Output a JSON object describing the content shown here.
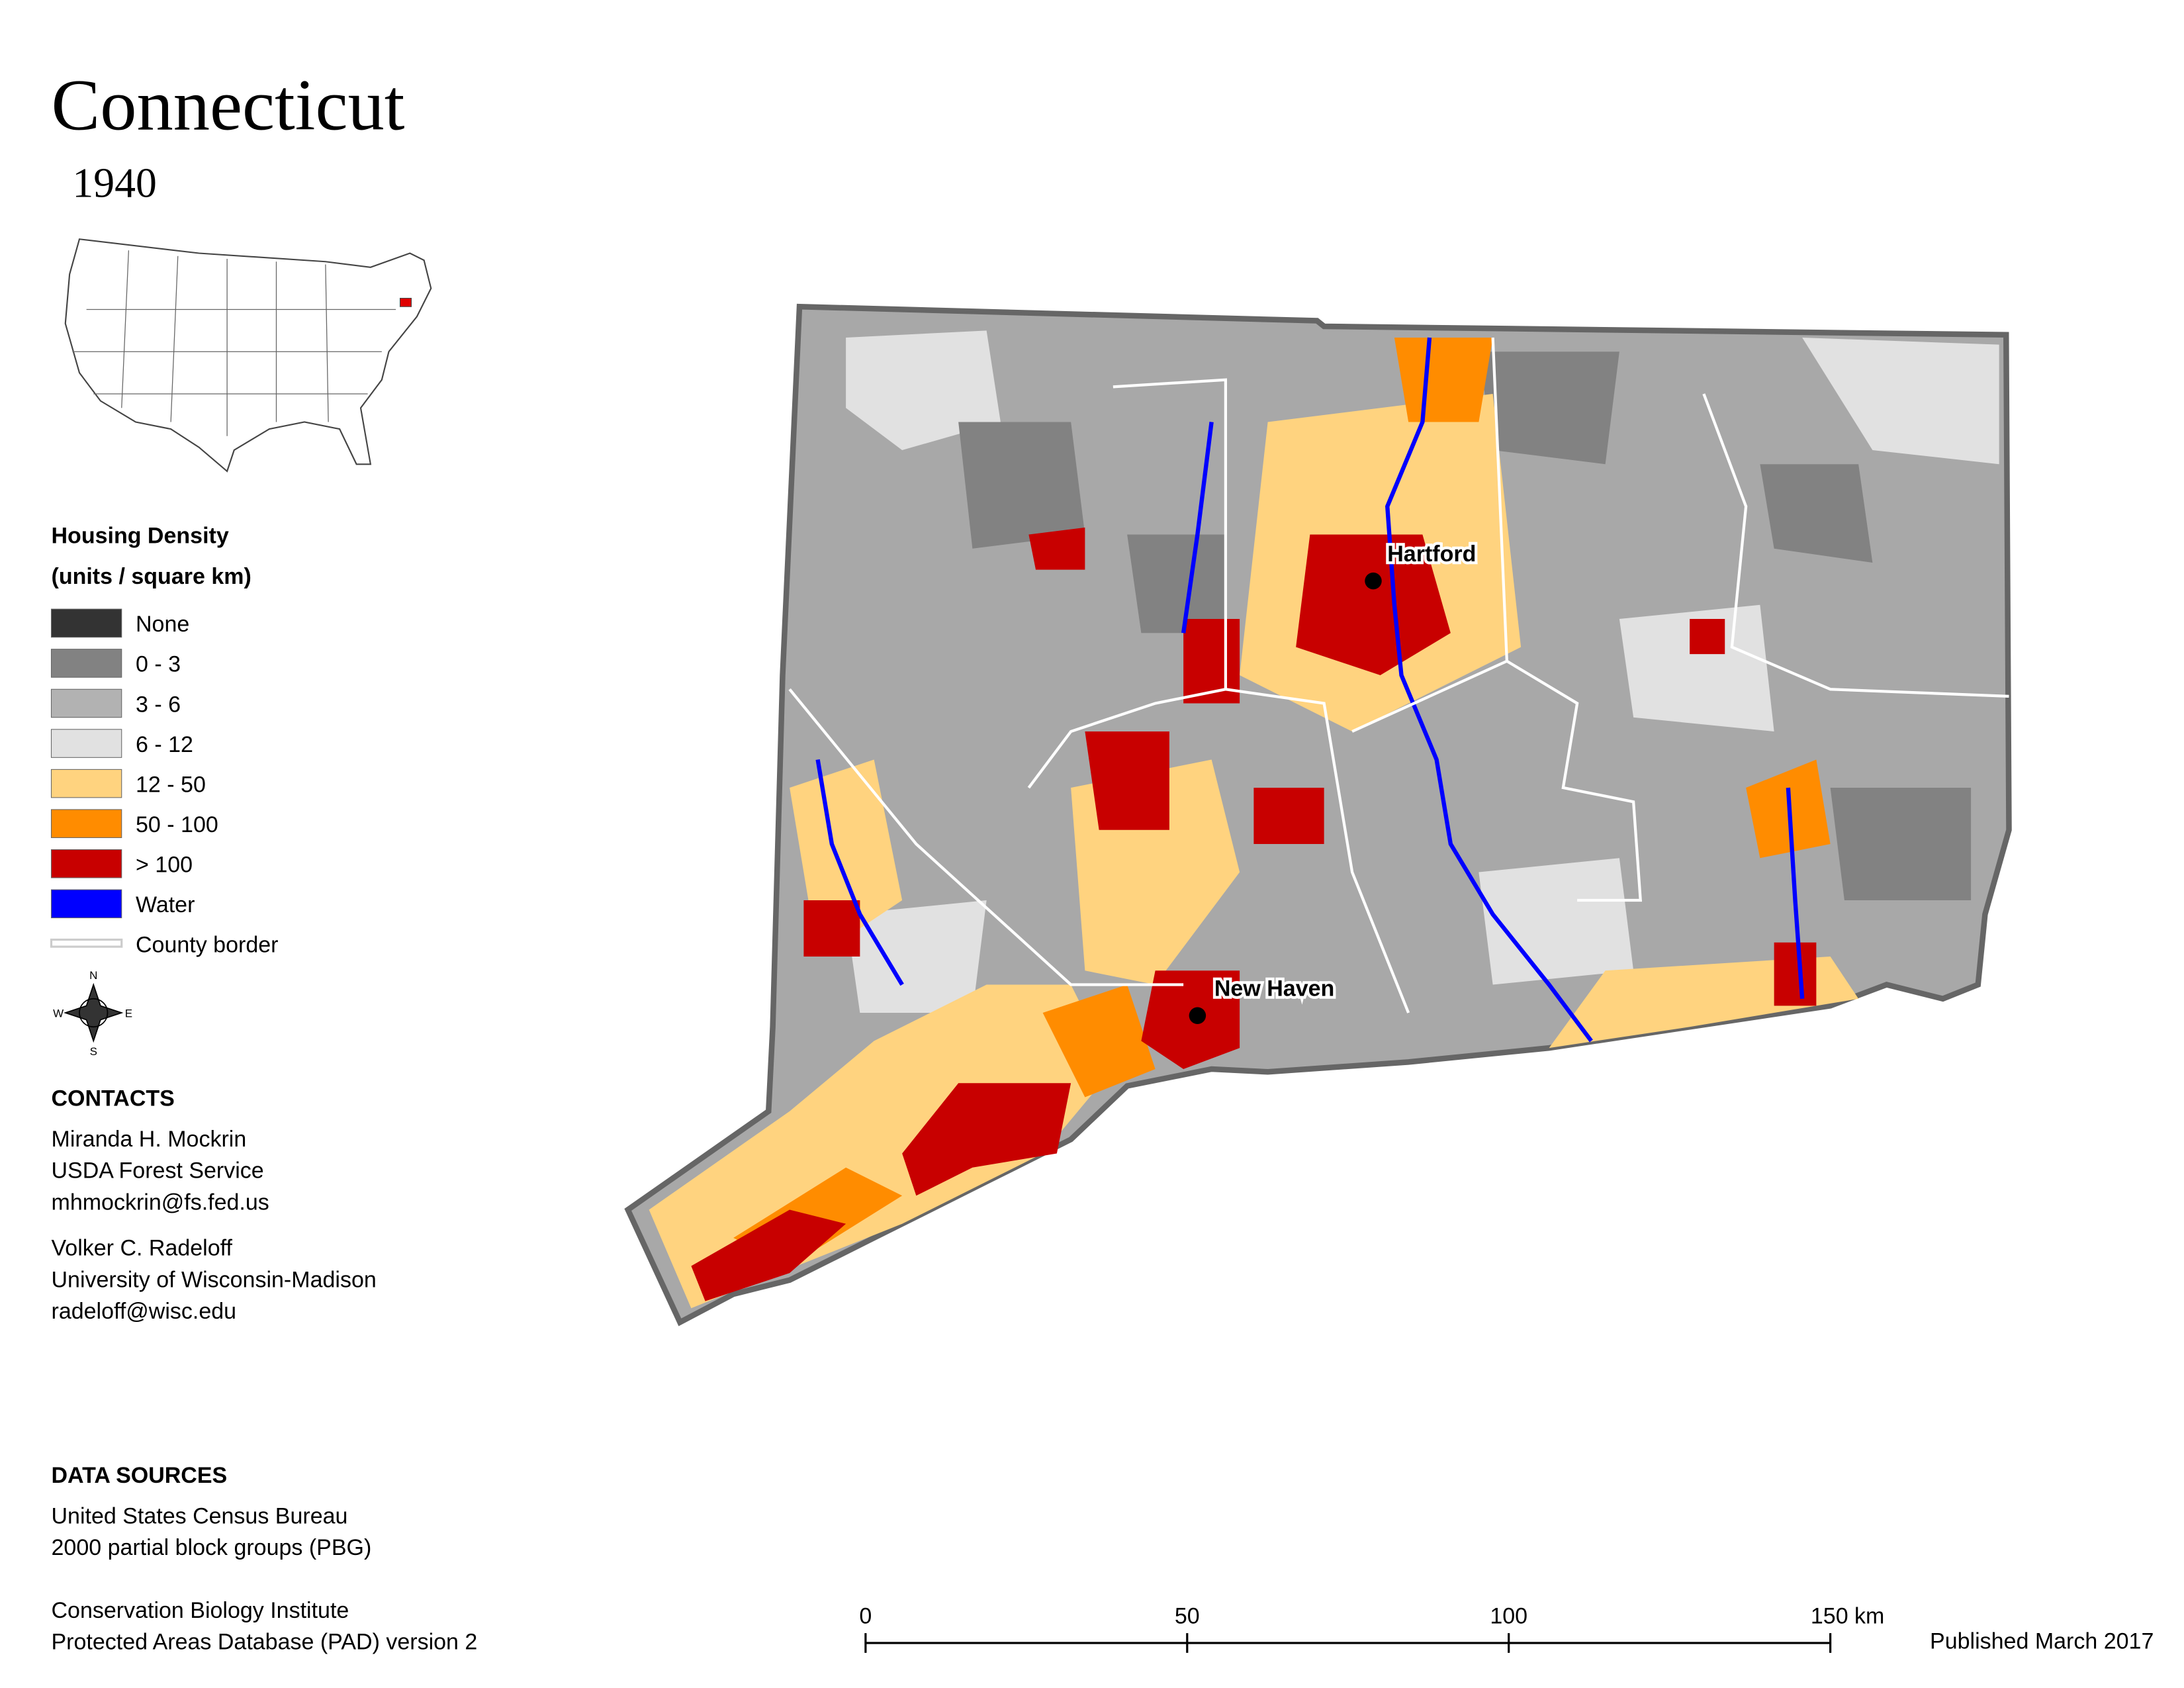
{
  "header": {
    "title": "Connecticut",
    "subtitle": "1940"
  },
  "legend": {
    "title_lines": [
      "Housing Density",
      "(units / square km)"
    ],
    "items": [
      {
        "label": "None",
        "color": "#333333"
      },
      {
        "label": "0 - 3",
        "color": "#828282"
      },
      {
        "label": "3 - 6",
        "color": "#b2b2b2"
      },
      {
        "label": "6 - 12",
        "color": "#e1e1e1"
      },
      {
        "label": "12 - 50",
        "color": "#ffd37f"
      },
      {
        "label": "50 - 100",
        "color": "#ff8c00"
      },
      {
        "label": "> 100",
        "color": "#c80000"
      },
      {
        "label": "Water",
        "color": "#0000ff"
      },
      {
        "label": "County border",
        "color": "#cccccc"
      }
    ]
  },
  "compass": {
    "n": "N",
    "s": "S",
    "e": "E",
    "w": "W"
  },
  "contacts": {
    "title": "CONTACTS",
    "people": [
      [
        "Miranda H. Mockrin",
        "USDA Forest Service",
        "mhmockrin@fs.fed.us"
      ],
      [
        "Volker C. Radeloff",
        "University of Wisconsin-Madison",
        "radeloff@wisc.edu"
      ]
    ]
  },
  "data_sources": {
    "title": "DATA SOURCES",
    "groups": [
      [
        "United States Census Bureau",
        "2000 partial block groups (PBG)"
      ],
      [
        "Conservation Biology Institute",
        "Protected Areas Database (PAD) version 2"
      ]
    ]
  },
  "cities": [
    {
      "name": "Hartford"
    },
    {
      "name": "New Haven"
    }
  ],
  "scale_bar": {
    "labels": [
      "0",
      "50",
      "100",
      "150 km"
    ]
  },
  "published": "Published March 2017"
}
